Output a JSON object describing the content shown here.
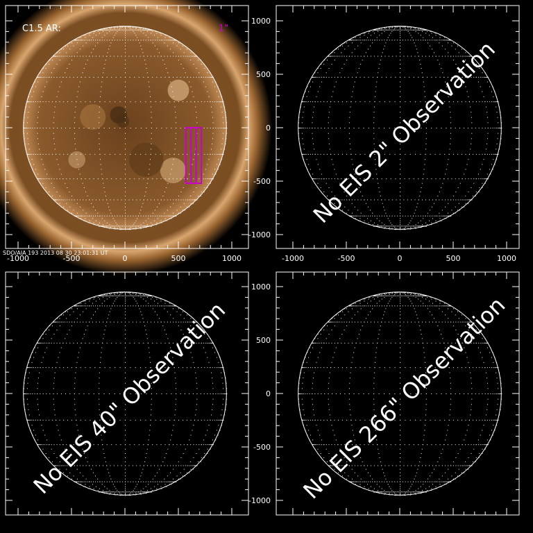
{
  "chart_data": [
    {
      "type": "image",
      "panel": "top-left",
      "label_left": "C1.5 AR:",
      "label_right": "1\"",
      "label_right_color": "#cc00cc",
      "caption": "SDO/AIA 193  2013 08 30 23:01:31 UT",
      "xticks": [
        "-1000",
        "-500",
        "0",
        "500",
        "1000"
      ],
      "yticks": [],
      "xlim": [
        -1150,
        1150
      ],
      "ylim": [
        -1150,
        1150
      ],
      "box": {
        "x": [
          570,
          715
        ],
        "y": [
          -520,
          0
        ],
        "color": "#cc00cc"
      },
      "disk_radius": 950
    },
    {
      "type": "image",
      "panel": "top-right",
      "annotation": "No EIS 2\" Observation",
      "xticks": [
        "-1000",
        "-500",
        "0",
        "500",
        "1000"
      ],
      "yticks": [
        "1000",
        "500",
        "0",
        "-500",
        "-1000"
      ],
      "xlim": [
        -1150,
        1150
      ],
      "ylim": [
        -1150,
        1150
      ],
      "disk_radius": 950
    },
    {
      "type": "image",
      "panel": "bottom-left",
      "annotation": "No EIS 40\" Observation",
      "xticks": [],
      "yticks": [],
      "xlim": [
        -1150,
        1150
      ],
      "ylim": [
        -1150,
        1150
      ],
      "disk_radius": 950
    },
    {
      "type": "image",
      "panel": "bottom-right",
      "annotation": "No EIS 266\" Observation",
      "xticks": [],
      "yticks": [
        "1000",
        "500",
        "0",
        "-500",
        "-1000"
      ],
      "xlim": [
        -1150,
        1150
      ],
      "ylim": [
        -1150,
        1150
      ],
      "disk_radius": 950
    }
  ]
}
